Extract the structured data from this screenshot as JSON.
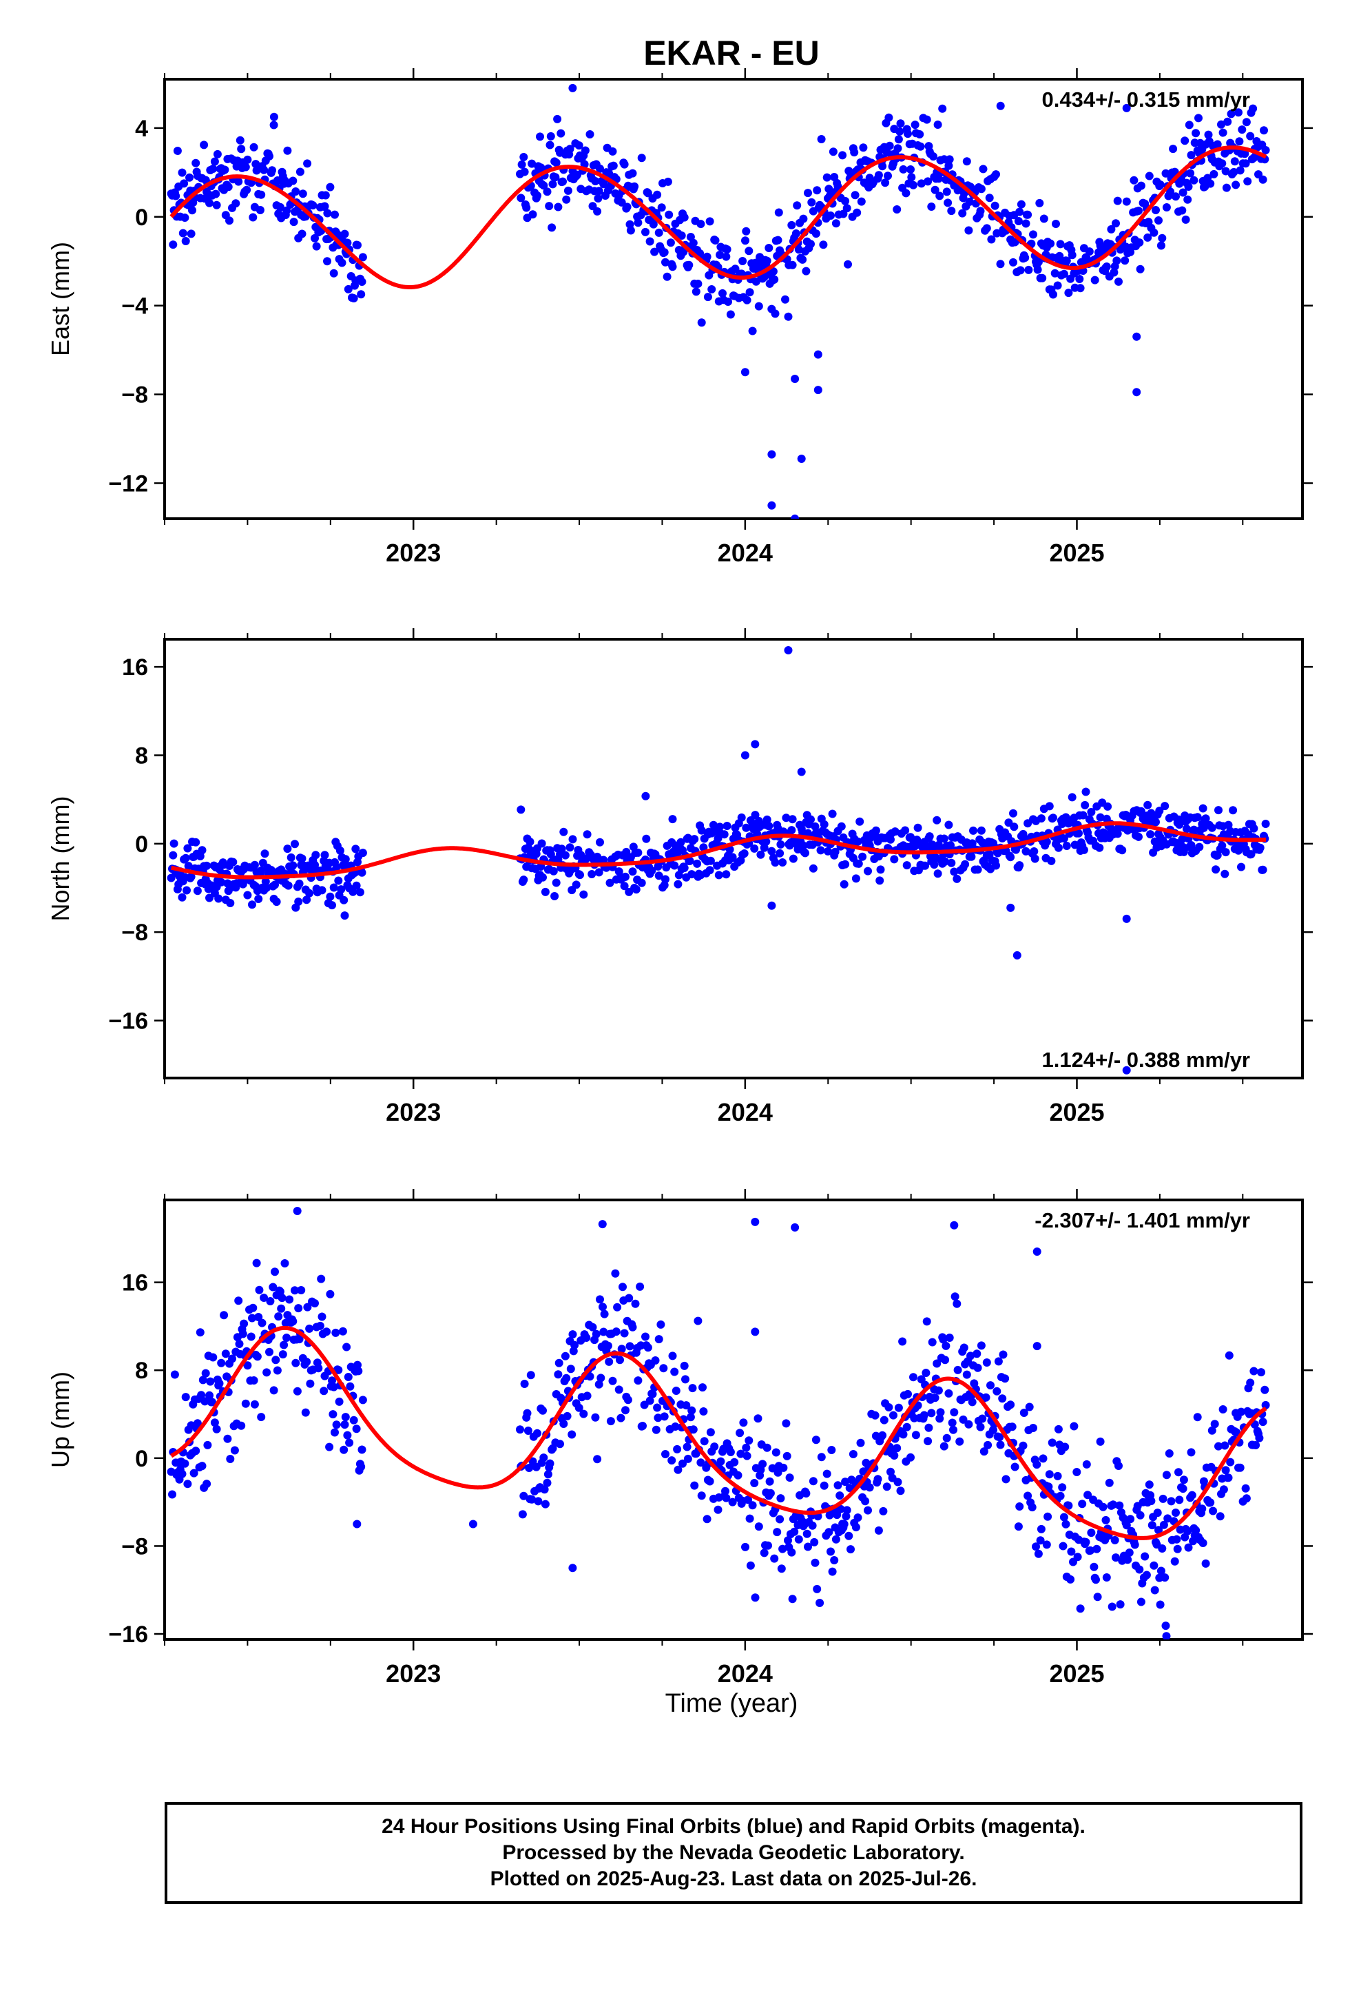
{
  "chart_data": {
    "type": "scatter",
    "title": "EKAR - EU",
    "xlabel": "Time (year)",
    "x_tick_labels": [
      "2023",
      "2024",
      "2025"
    ],
    "xlim": [
      2022.25,
      2025.68
    ],
    "marker_color": "#0000ff",
    "fit_color": "#ff0000",
    "panels": [
      {
        "name": "east",
        "ylabel": "East (mm)",
        "ylim": [
          -13.6,
          6.2
        ],
        "yticks": [
          4,
          0,
          -4,
          -8,
          -12
        ],
        "ytick_labels": [
          "4",
          "0",
          "−4",
          "−8",
          "−12"
        ],
        "rate_label": "0.434+/- 0.315 mm/yr",
        "rate_position": "top-right",
        "fit": {
          "offset": -0.03,
          "rate": 0.434,
          "annual_amplitude": 2.6,
          "annual_peak": 0.48,
          "semiannual_amplitude": 0.15,
          "semiannual_phase": 0.3
        },
        "scatter_sd": 0.95,
        "outliers": [
          [
            2022.68,
            2.4
          ],
          [
            2022.74,
            -2.0
          ],
          [
            2024.08,
            -13.0
          ],
          [
            2024.15,
            -13.6
          ],
          [
            2024.08,
            -10.7
          ],
          [
            2024.17,
            -10.9
          ],
          [
            2024.0,
            -7.0
          ],
          [
            2024.15,
            -7.3
          ],
          [
            2024.22,
            -7.8
          ],
          [
            2024.22,
            -6.2
          ],
          [
            2024.13,
            -4.5
          ],
          [
            2024.77,
            5.0
          ],
          [
            2025.15,
            4.9
          ],
          [
            2025.18,
            -5.4
          ],
          [
            2025.18,
            -7.9
          ],
          [
            2024.23,
            3.5
          ],
          [
            2023.48,
            5.8
          ],
          [
            2022.58,
            4.5
          ]
        ]
      },
      {
        "name": "north",
        "ylabel": "North (mm)",
        "ylim": [
          -21.2,
          18.5
        ],
        "yticks": [
          16,
          8,
          0,
          -8,
          -16
        ],
        "ytick_labels": [
          "16",
          "8",
          "0",
          "−8",
          "−16"
        ],
        "rate_label": "1.124+/- 0.388 mm/yr",
        "rate_position": "bottom-right",
        "fit": {
          "offset": -0.6,
          "rate": 1.124,
          "annual_amplitude": 1.0,
          "annual_peak": 0.1,
          "semiannual_amplitude": 0.2,
          "semiannual_phase": 0.1
        },
        "scatter_sd": 1.2,
        "outliers": [
          [
            2024.13,
            17.5
          ],
          [
            2024.03,
            9.0
          ],
          [
            2024.08,
            -5.6
          ],
          [
            2024.8,
            -5.8
          ],
          [
            2024.82,
            -10.1
          ],
          [
            2025.15,
            -6.8
          ],
          [
            2023.7,
            4.3
          ],
          [
            2024.17,
            6.5
          ],
          [
            2025.15,
            -20.5
          ],
          [
            2024.0,
            8.0
          ]
        ]
      },
      {
        "name": "up",
        "ylabel": "Up (mm)",
        "ylim": [
          -16.5,
          23.5
        ],
        "yticks": [
          16,
          8,
          0,
          -8,
          -16
        ],
        "ytick_labels": [
          "16",
          "8",
          "0",
          "−8",
          "−16"
        ],
        "rate_label": "-2.307+/- 1.401 mm/yr",
        "rate_position": "top-right",
        "fit": {
          "offset": 1.0,
          "rate": -2.307,
          "annual_amplitude": 6.5,
          "annual_peak": 0.63,
          "semiannual_amplitude": 1.2,
          "semiannual_phase": 0.6
        },
        "scatter_sd": 3.3,
        "outliers": [
          [
            2022.65,
            22.5
          ],
          [
            2023.57,
            21.3
          ],
          [
            2024.03,
            21.5
          ],
          [
            2024.15,
            21.0
          ],
          [
            2024.63,
            21.2
          ],
          [
            2024.88,
            18.8
          ],
          [
            2024.03,
            11.5
          ],
          [
            2024.88,
            10.2
          ],
          [
            2025.27,
            -16.2
          ],
          [
            2023.18,
            -6.0
          ],
          [
            2023.48,
            -10.0
          ],
          [
            2022.83,
            -6.0
          ]
        ]
      }
    ],
    "data_gaps": [
      [
        2022.85,
        2023.32
      ]
    ],
    "data_start": 2022.27,
    "data_end": 2025.57
  },
  "footer": {
    "line1": "24 Hour Positions Using Final Orbits (blue) and Rapid Orbits (magenta).",
    "line2": "Processed by the Nevada Geodetic Laboratory.",
    "line3": "Plotted on 2025-Aug-23. Last data on 2025-Jul-26."
  }
}
